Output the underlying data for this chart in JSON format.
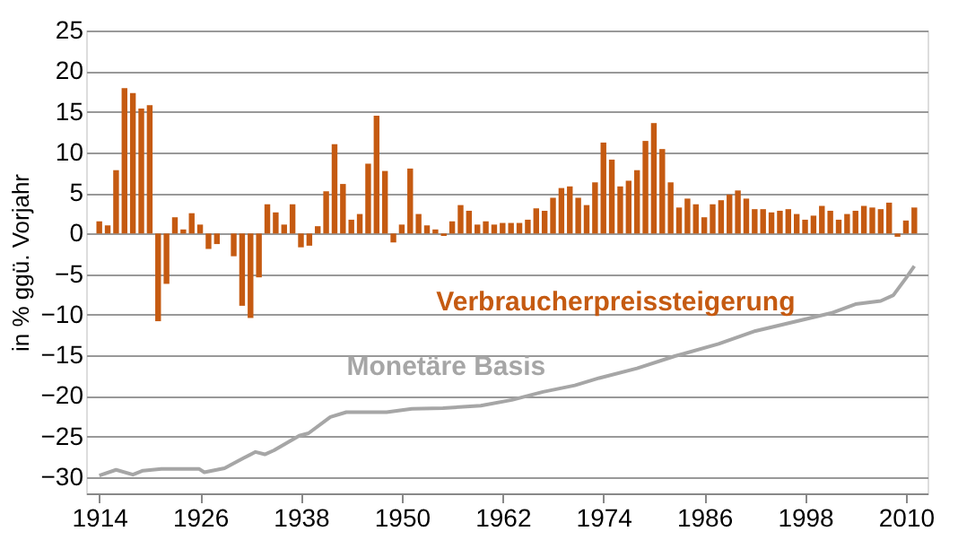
{
  "chart_data": {
    "type": "bar",
    "ylabel": "in % ggü. Vorjahr",
    "x": [
      1914,
      1915,
      1916,
      1917,
      1918,
      1919,
      1920,
      1921,
      1922,
      1923,
      1924,
      1925,
      1926,
      1927,
      1928,
      1929,
      1930,
      1931,
      1932,
      1933,
      1934,
      1935,
      1936,
      1937,
      1938,
      1939,
      1940,
      1941,
      1942,
      1943,
      1944,
      1945,
      1946,
      1947,
      1948,
      1949,
      1950,
      1951,
      1952,
      1953,
      1954,
      1955,
      1956,
      1957,
      1958,
      1959,
      1960,
      1961,
      1962,
      1963,
      1964,
      1965,
      1966,
      1967,
      1968,
      1969,
      1970,
      1971,
      1972,
      1973,
      1974,
      1975,
      1976,
      1977,
      1978,
      1979,
      1980,
      1981,
      1982,
      1983,
      1984,
      1985,
      1986,
      1987,
      1988,
      1989,
      1990,
      1991,
      1992,
      1993,
      1994,
      1995,
      1996,
      1997,
      1998,
      1999,
      2000,
      2001,
      2002,
      2003,
      2004,
      2005,
      2006,
      2007,
      2008,
      2009,
      2010,
      2011
    ],
    "series": [
      {
        "name": "Verbraucherpreissteigerung",
        "color": "#c55a11",
        "values": [
          1.5,
          1.0,
          7.8,
          17.9,
          17.3,
          15.4,
          15.8,
          -10.8,
          -6.2,
          2.0,
          0.5,
          2.5,
          1.1,
          -1.9,
          -1.3,
          null,
          -2.8,
          -8.9,
          -10.4,
          -5.4,
          3.6,
          2.6,
          1.1,
          3.6,
          -1.7,
          -1.5,
          0.9,
          5.2,
          11.0,
          6.1,
          1.7,
          2.4,
          8.6,
          14.5,
          7.7,
          -1.1,
          1.1,
          8.0,
          2.4,
          1.0,
          0.5,
          -0.3,
          1.5,
          3.5,
          2.8,
          1.1,
          1.5,
          1.1,
          1.3,
          1.3,
          1.3,
          1.7,
          3.1,
          2.8,
          4.4,
          5.6,
          5.8,
          4.4,
          3.5,
          6.3,
          11.2,
          9.1,
          5.8,
          6.5,
          7.8,
          11.4,
          13.6,
          10.4,
          6.3,
          3.2,
          4.3,
          3.6,
          2.0,
          3.6,
          4.1,
          4.8,
          5.3,
          4.3,
          3.0,
          3.0,
          2.6,
          2.8,
          3.0,
          2.4,
          1.7,
          2.2,
          3.4,
          2.8,
          1.7,
          2.4,
          2.8,
          3.4,
          3.2,
          3.0,
          3.8,
          -0.4,
          1.6,
          3.2
        ]
      },
      {
        "name": "Monetäre Basis",
        "type": "line",
        "color": "#a6a6a6",
        "x": [
          1914,
          1916,
          1918,
          1919.2,
          1921.4,
          1925.9,
          1926.5,
          1928.9,
          1931.1,
          1932.6,
          1933.7,
          1934.8,
          1937.8,
          1938.9,
          1941.5,
          1943.4,
          1948.2,
          1951.2,
          1954.9,
          1959.4,
          1963.1,
          1966.8,
          1970.6,
          1973.5,
          1978,
          1982.5,
          1987.7,
          1992.1,
          1996.6,
          2001.1,
          2004,
          2007,
          2008.5,
          2010,
          2011
        ],
        "values": [
          -29.8,
          -29.1,
          -29.7,
          -29.2,
          -29.0,
          -29.0,
          -29.4,
          -28.9,
          -27.7,
          -26.9,
          -27.2,
          -26.7,
          -24.9,
          -24.6,
          -22.6,
          -22.0,
          -22.0,
          -21.6,
          -21.5,
          -21.2,
          -20.5,
          -19.5,
          -18.7,
          -17.8,
          -16.6,
          -15.1,
          -13.6,
          -12.0,
          -10.9,
          -9.8,
          -8.7,
          -8.3,
          -7.6,
          -5.5,
          -4.0
        ]
      }
    ],
    "xlim": [
      1913.5,
      2011.5
    ],
    "xticks": [
      1914,
      1926,
      1938,
      1950,
      1962,
      1974,
      1986,
      1998,
      2010
    ],
    "ylim": [
      -32,
      25
    ],
    "yticks": [
      -30,
      -25,
      -20,
      -15,
      -10,
      -5,
      0,
      5,
      10,
      15,
      20,
      25
    ],
    "grid": "y",
    "legend": false
  }
}
